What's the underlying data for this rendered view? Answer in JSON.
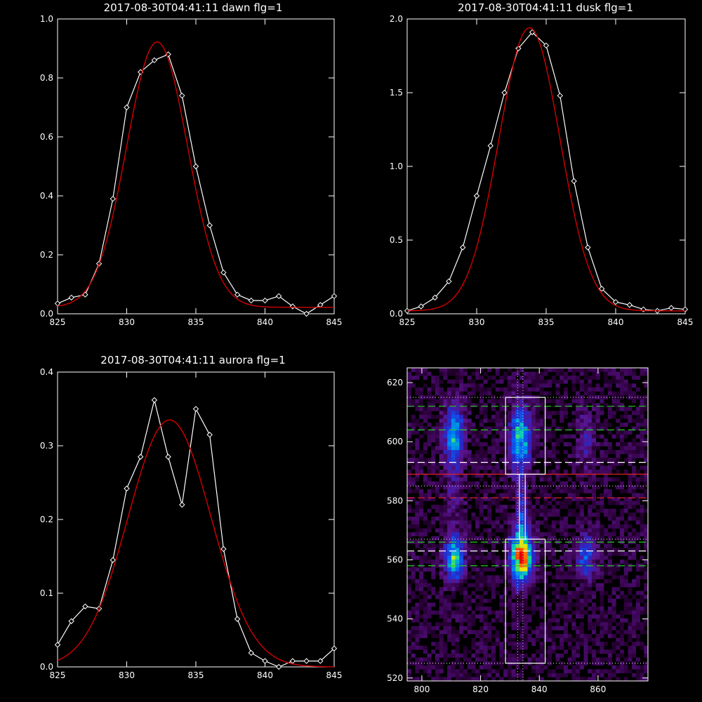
{
  "chart_data": [
    {
      "type": "line",
      "title": "2017-08-30T04:41:11 dawn flg=1",
      "xlim": [
        825,
        845
      ],
      "ylim": [
        0,
        1.0
      ],
      "xticks": [
        "825",
        "830",
        "835",
        "840",
        "845"
      ],
      "yticks": [
        "0.0",
        "0.2",
        "0.4",
        "0.6",
        "0.8",
        "1.0"
      ],
      "series": [
        {
          "role": "data",
          "color": "#ffffff",
          "x": [
            825,
            826,
            827,
            828,
            829,
            830,
            831,
            832,
            833,
            834,
            835,
            836,
            837,
            838,
            839,
            840,
            841,
            842,
            843,
            844,
            845
          ],
          "y": [
            0.035,
            0.055,
            0.065,
            0.17,
            0.39,
            0.7,
            0.82,
            0.86,
            0.88,
            0.74,
            0.5,
            0.3,
            0.14,
            0.065,
            0.045,
            0.045,
            0.06,
            0.025,
            0.0,
            0.03,
            0.06
          ]
        },
        {
          "role": "fit",
          "color": "#d40000",
          "model": "gauss",
          "amp": 0.9,
          "center": 832.2,
          "sigma": 2.2,
          "offset": 0.022
        }
      ]
    },
    {
      "type": "line",
      "title": "2017-08-30T04:41:11 dusk flg=1",
      "xlim": [
        825,
        845
      ],
      "ylim": [
        0,
        2.0
      ],
      "xticks": [
        "825",
        "830",
        "835",
        "840",
        "845"
      ],
      "yticks": [
        "0.0",
        "0.5",
        "1.0",
        "1.5",
        "2.0"
      ],
      "series": [
        {
          "role": "data",
          "color": "#ffffff",
          "x": [
            825,
            826,
            827,
            828,
            829,
            830,
            831,
            832,
            833,
            834,
            835,
            836,
            837,
            838,
            839,
            840,
            841,
            842,
            843,
            844,
            845
          ],
          "y": [
            0.02,
            0.05,
            0.11,
            0.22,
            0.45,
            0.8,
            1.14,
            1.5,
            1.8,
            1.91,
            1.82,
            1.48,
            0.9,
            0.45,
            0.17,
            0.08,
            0.06,
            0.03,
            0.02,
            0.04,
            0.03
          ]
        },
        {
          "role": "fit",
          "color": "#d40000",
          "model": "gauss",
          "amp": 1.92,
          "center": 833.8,
          "sigma": 2.2,
          "offset": 0.02
        }
      ]
    },
    {
      "type": "line",
      "title": "2017-08-30T04:41:11 aurora flg=1",
      "xlim": [
        825,
        845
      ],
      "ylim": [
        0,
        0.4
      ],
      "xticks": [
        "825",
        "830",
        "835",
        "840",
        "845"
      ],
      "yticks": [
        "0.0",
        "0.1",
        "0.2",
        "0.3",
        "0.4"
      ],
      "series": [
        {
          "role": "data",
          "color": "#ffffff",
          "x": [
            825,
            826,
            827,
            828,
            829,
            830,
            831,
            832,
            833,
            834,
            835,
            836,
            837,
            838,
            839,
            840,
            841,
            842,
            843,
            844,
            845
          ],
          "y": [
            0.03,
            0.062,
            0.082,
            0.079,
            0.145,
            0.242,
            0.285,
            0.362,
            0.285,
            0.22,
            0.35,
            0.315,
            0.16,
            0.065,
            0.019,
            0.008,
            0.0,
            0.008,
            0.008,
            0.008,
            0.025
          ]
        },
        {
          "role": "fit",
          "color": "#d40000",
          "model": "gauss",
          "amp": 0.335,
          "center": 833.1,
          "sigma": 3.0,
          "offset": 0.0
        }
      ]
    },
    {
      "type": "heatmap",
      "title": "",
      "xlim": [
        795,
        877
      ],
      "ylim": [
        519,
        625
      ],
      "xticks": [
        "800",
        "820",
        "840",
        "860"
      ],
      "yticks": [
        "520",
        "540",
        "560",
        "580",
        "600",
        "620"
      ],
      "blobs": [
        {
          "x": 811,
          "y": 602,
          "sx": 2.2,
          "sy": 7,
          "amp": 0.45
        },
        {
          "x": 811,
          "y": 561,
          "sx": 2.2,
          "sy": 5,
          "amp": 0.55
        },
        {
          "x": 833.5,
          "y": 601,
          "sx": 2.3,
          "sy": 8,
          "amp": 0.5
        },
        {
          "x": 834,
          "y": 561,
          "sx": 2.3,
          "sy": 5.5,
          "amp": 1.0
        },
        {
          "x": 834,
          "y": 575,
          "sx": 1.2,
          "sy": 6,
          "amp": 0.25
        },
        {
          "x": 856,
          "y": 561,
          "sx": 2.2,
          "sy": 5,
          "amp": 0.3
        },
        {
          "x": 856,
          "y": 601,
          "sx": 2.2,
          "sy": 7,
          "amp": 0.15
        },
        {
          "x": 811,
          "y": 581,
          "sx": 2.0,
          "sy": 6,
          "amp": 0.12
        }
      ],
      "boxes": [
        {
          "x0": 828.5,
          "x1": 842,
          "y0": 589,
          "y1": 615,
          "color": "#ffffff"
        },
        {
          "x0": 828.5,
          "x1": 842,
          "y0": 525,
          "y1": 567,
          "color": "#ffffff"
        },
        {
          "x0": 833.2,
          "x1": 835.2,
          "y0": 567,
          "y1": 589,
          "color": "#ffffff"
        }
      ],
      "hlines": [
        {
          "y": 615,
          "color": "#cccccc",
          "style": "dot"
        },
        {
          "y": 612,
          "color": "#22cc22",
          "style": "dash"
        },
        {
          "y": 604,
          "color": "#22cc22",
          "style": "dash"
        },
        {
          "y": 593,
          "color": "#ffffff",
          "style": "dash"
        },
        {
          "y": 589,
          "color": "#dd2222",
          "style": "solid"
        },
        {
          "y": 585,
          "color": "#cccccc",
          "style": "dot"
        },
        {
          "y": 581,
          "color": "#dd2222",
          "style": "dash"
        },
        {
          "y": 567,
          "color": "#cccccc",
          "style": "dot"
        },
        {
          "y": 566,
          "color": "#22cc22",
          "style": "dash"
        },
        {
          "y": 563,
          "color": "#ffffff",
          "style": "dash"
        },
        {
          "y": 558,
          "color": "#22cc22",
          "style": "dash"
        },
        {
          "y": 525,
          "color": "#cccccc",
          "style": "dot"
        }
      ],
      "vlines": [
        {
          "x": 832.6,
          "color": "#cccccc",
          "style": "dot"
        },
        {
          "x": 834.4,
          "color": "#cccccc",
          "style": "dot"
        }
      ]
    }
  ]
}
